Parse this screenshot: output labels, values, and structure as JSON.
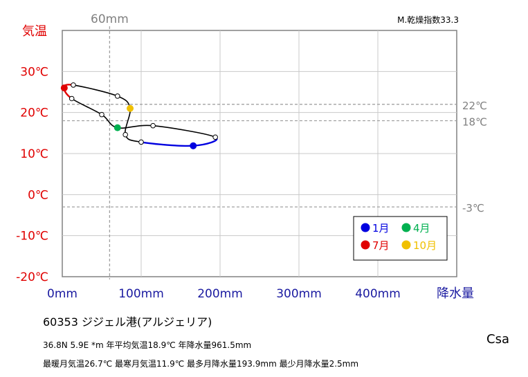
{
  "chart_data": {
    "type": "line",
    "title": "",
    "ylabel": "気温",
    "xlabel": "降水量",
    "top_label_mm": "60mm",
    "dryness_index": "M.乾燥指数33.3",
    "xlim": [
      0,
      500
    ],
    "ylim": [
      -20,
      40
    ],
    "yticks": [
      {
        "value": 30,
        "label": "30℃"
      },
      {
        "value": 20,
        "label": "20℃"
      },
      {
        "value": 10,
        "label": "10℃"
      },
      {
        "value": 0,
        "label": "0℃"
      },
      {
        "value": -10,
        "label": "-10℃"
      },
      {
        "value": -20,
        "label": "-20℃"
      }
    ],
    "xticks": [
      {
        "value": 0,
        "label": "0mm"
      },
      {
        "value": 100,
        "label": "100mm"
      },
      {
        "value": 200,
        "label": "200mm"
      },
      {
        "value": 300,
        "label": "300mm"
      },
      {
        "value": 400,
        "label": "400mm"
      }
    ],
    "reference_lines": [
      {
        "value": 22,
        "label": "22℃"
      },
      {
        "value": 18,
        "label": "18℃"
      },
      {
        "value": -3,
        "label": "-3℃"
      }
    ],
    "reference_vline": 60,
    "months": [
      {
        "month": 1,
        "precip": 166,
        "temp": 11.9
      },
      {
        "month": 2,
        "precip": 194,
        "temp": 14.0
      },
      {
        "month": 3,
        "precip": 115,
        "temp": 16.8
      },
      {
        "month": 4,
        "precip": 70,
        "temp": 16.3
      },
      {
        "month": 5,
        "precip": 50,
        "temp": 19.5
      },
      {
        "month": 6,
        "precip": 12,
        "temp": 23.4
      },
      {
        "month": 7,
        "precip": 2.5,
        "temp": 26.0
      },
      {
        "month": 8,
        "precip": 14,
        "temp": 26.7
      },
      {
        "month": 9,
        "precip": 70,
        "temp": 24.0
      },
      {
        "month": 10,
        "precip": 86,
        "temp": 21.0
      },
      {
        "month": 11,
        "precip": 80,
        "temp": 14.6
      },
      {
        "month": 12,
        "precip": 100,
        "temp": 12.8
      }
    ],
    "legend": [
      {
        "label": "1月",
        "month": 1,
        "color": "#0000e0"
      },
      {
        "label": "4月",
        "month": 4,
        "color": "#00b050"
      },
      {
        "label": "7月",
        "month": 7,
        "color": "#e00000"
      },
      {
        "label": "10月",
        "month": 10,
        "color": "#f0c000"
      }
    ],
    "colors": {
      "winter_line": "#0000e0",
      "summer_line": "#e00000",
      "main_line": "#000000",
      "ytick_text": "#e00000",
      "xtick_text": "#1a1aa0",
      "ref_text": "#808080",
      "grid": "#c8c8c8"
    },
    "legend_placement": "bottom-right",
    "grid": true
  },
  "station": {
    "title": "60353  ジジェル港(アルジェリア)",
    "line1": "36.8N  5.9E *m  年平均気温18.9℃ 年降水量961.5mm",
    "line2": "最暖月気温26.7℃ 最寒月気温11.9℃ 最多月降水量193.9mm 最少月降水量2.5mm",
    "climate": "Csa"
  }
}
